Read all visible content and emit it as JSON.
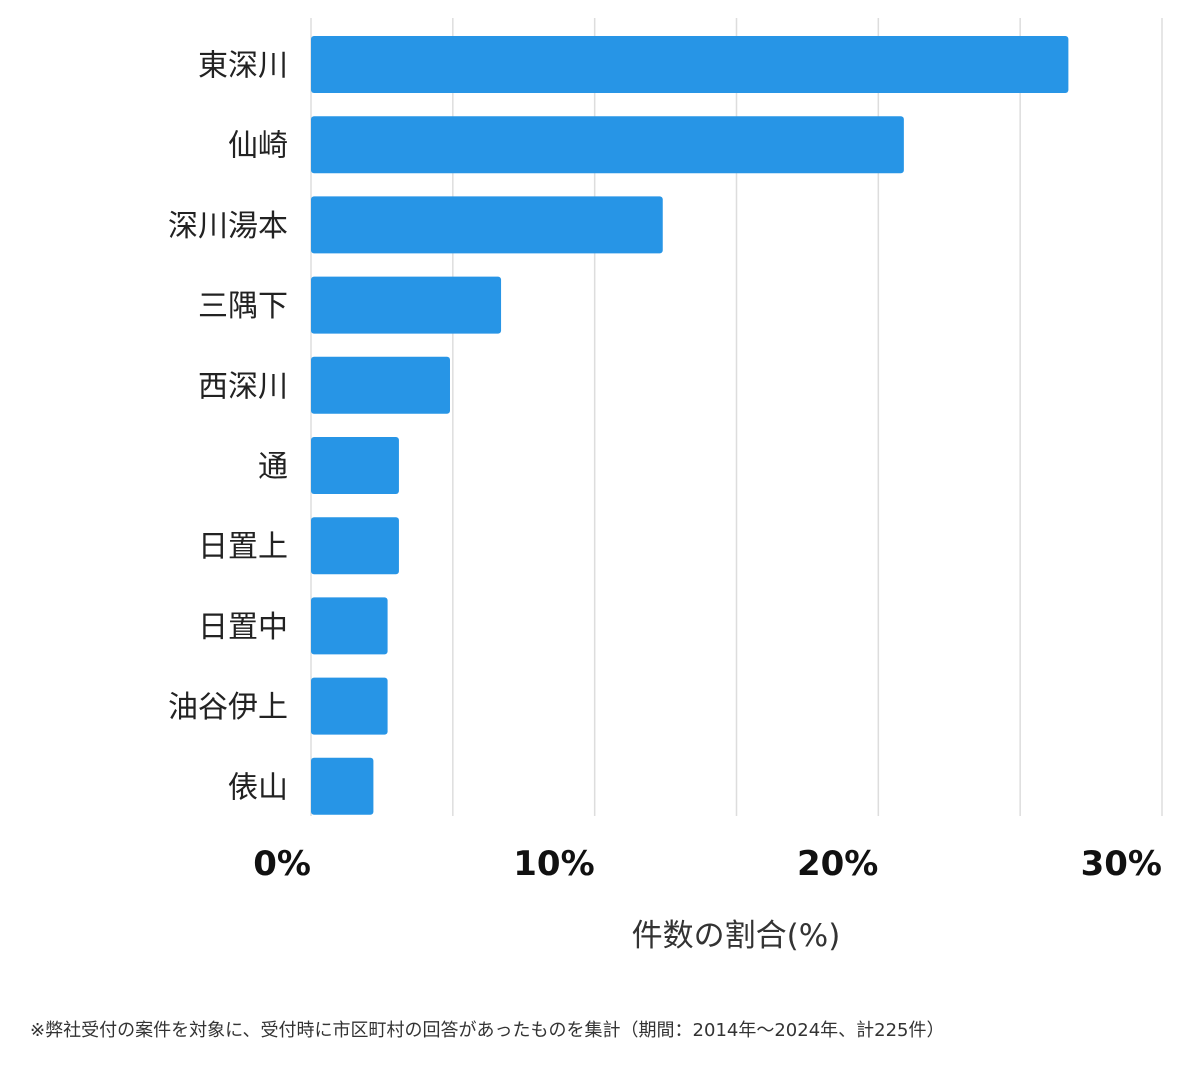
{
  "chart_data": {
    "type": "bar",
    "orientation": "horizontal",
    "categories": [
      "東深川",
      "仙崎",
      "深川湯本",
      "三隅下",
      "西深川",
      "通",
      "日置上",
      "日置中",
      "油谷伊上",
      "俵山"
    ],
    "values": [
      26.7,
      20.9,
      12.4,
      6.7,
      4.9,
      3.1,
      3.1,
      2.7,
      2.7,
      2.2
    ],
    "xlabel": "件数の割合(%)",
    "xlim": [
      0,
      30
    ],
    "xticks": [
      0,
      10,
      20,
      30
    ],
    "xtick_labels": [
      "0%",
      "10%",
      "20%",
      "30%"
    ],
    "grid": true,
    "bar_color": "#2795e6",
    "grid_color": "#dddddd"
  },
  "footnote": "※弊社受付の案件を対象に、受付時に市区町村の回答があったものを集計（期間：2014年～2024年、計225件）"
}
